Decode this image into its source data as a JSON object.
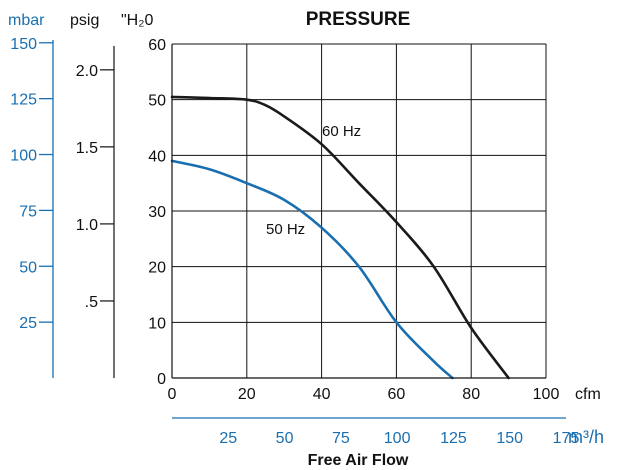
{
  "chart_data": {
    "type": "line",
    "title": "PRESSURE",
    "xlabel": "Free Air Flow",
    "x_unit_primary": "cfm",
    "x_unit_secondary": "m³/h",
    "xlim": [
      0,
      100
    ],
    "ylim": [
      0,
      60
    ],
    "grid": true,
    "x_ticks": [
      0,
      20,
      40,
      60,
      80,
      100
    ],
    "y_ticks": [
      0,
      10,
      20,
      30,
      40,
      50,
      60
    ],
    "x_secondary_ticks": [
      25,
      50,
      75,
      100,
      125,
      150,
      175
    ],
    "y_axes": [
      {
        "label": "mbar",
        "ticks": [
          25,
          50,
          75,
          100,
          125,
          150
        ],
        "color": "#1a6fb0"
      },
      {
        "label": "psig",
        "ticks": [
          ".5",
          "1.0",
          "1.5",
          "2.0"
        ],
        "color": "#222222"
      },
      {
        "label": "\"H₂0",
        "ticks": [
          0,
          10,
          20,
          30,
          40,
          50,
          60
        ],
        "color": "#222222"
      }
    ],
    "series": [
      {
        "name": "60 Hz",
        "color": "#1a1a1a",
        "x": [
          0,
          10,
          20,
          25,
          30,
          40,
          50,
          60,
          70,
          80,
          90
        ],
        "y": [
          50.5,
          50.3,
          50,
          49,
          47,
          42,
          35,
          28,
          20,
          9,
          0
        ]
      },
      {
        "name": "50 Hz",
        "color": "#1a6fb0",
        "x": [
          0,
          10,
          20,
          30,
          40,
          50,
          60,
          70,
          75
        ],
        "y": [
          39,
          37.5,
          35,
          32,
          27,
          20,
          10,
          3,
          0
        ]
      }
    ],
    "colors": {
      "axis": "#111111",
      "grid": "#111111",
      "secondary": "#1a6fb0"
    }
  }
}
